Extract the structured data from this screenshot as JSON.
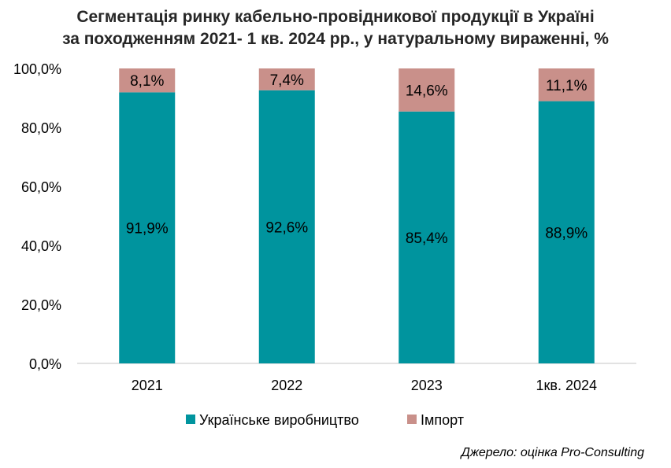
{
  "chart_data": {
    "type": "bar",
    "stacked": true,
    "title": "Сегментація ринку кабельно-провідникової продукції в Україні",
    "subtitle": "за походженням 2021- 1 кв. 2024 рр., у натуральному вираженні, %",
    "categories": [
      "2021",
      "2022",
      "2023",
      "1кв. 2024"
    ],
    "series": [
      {
        "name": "Українське виробництво",
        "color": "#00949E",
        "values": [
          91.9,
          92.6,
          85.4,
          88.9
        ],
        "labels": [
          "91,9%",
          "92,6%",
          "85,4%",
          "88,9%"
        ]
      },
      {
        "name": "Імпорт",
        "color": "#C9908A",
        "values": [
          8.1,
          7.4,
          14.6,
          11.1
        ],
        "labels": [
          "8,1%",
          "7,4%",
          "14,6%",
          "11,1%"
        ]
      }
    ],
    "ylim": [
      0,
      100
    ],
    "yticks": [
      "0,0%",
      "20,0%",
      "40,0%",
      "60,0%",
      "80,0%",
      "100,0%"
    ],
    "ytick_values": [
      0,
      20,
      40,
      60,
      80,
      100
    ],
    "grid": false,
    "legend": "bottom"
  },
  "source": "Джерело: оцінка Pro-Consulting"
}
